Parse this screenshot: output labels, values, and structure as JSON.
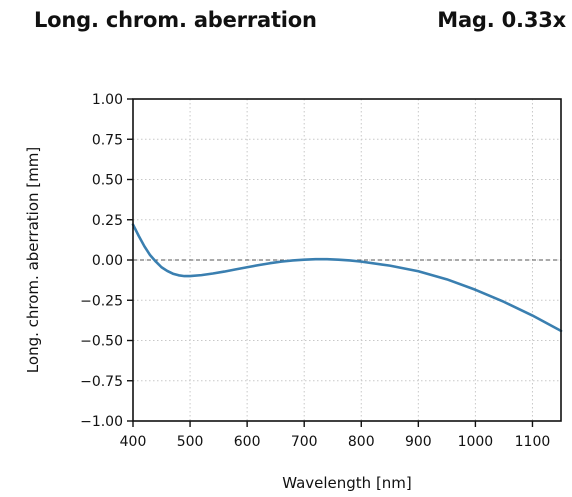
{
  "header": {
    "title": "Long. chrom. aberration",
    "magnification": "Mag. 0.33x"
  },
  "chart_data": {
    "type": "line",
    "title": "Long. chrom. aberration",
    "xlabel": "Wavelength [nm]",
    "ylabel": "Long. chrom. aberration [mm]",
    "xlim": [
      400,
      1150
    ],
    "ylim": [
      -1.0,
      1.0
    ],
    "xticks": [
      400,
      500,
      600,
      700,
      800,
      900,
      1000,
      1100
    ],
    "yticks": [
      1.0,
      0.75,
      0.5,
      0.25,
      0.0,
      -0.25,
      -0.5,
      -0.75,
      -1.0
    ],
    "xtick_labels": [
      "400",
      "500",
      "600",
      "700",
      "800",
      "900",
      "1000",
      "1100"
    ],
    "ytick_labels": [
      "1.00",
      "0.75",
      "0.50",
      "0.25",
      "0.00",
      "−0.25",
      "−0.50",
      "−0.75",
      "−1.00"
    ],
    "grid": true,
    "zero_line": true,
    "series": [
      {
        "color": "#3a7fb0",
        "x": [
          400,
          410,
          420,
          430,
          440,
          450,
          460,
          470,
          480,
          490,
          500,
          520,
          540,
          560,
          580,
          600,
          620,
          640,
          660,
          680,
          700,
          720,
          740,
          760,
          780,
          800,
          850,
          900,
          950,
          1000,
          1050,
          1100,
          1150
        ],
        "y": [
          0.22,
          0.15,
          0.085,
          0.03,
          -0.01,
          -0.045,
          -0.068,
          -0.085,
          -0.095,
          -0.1,
          -0.1,
          -0.094,
          -0.084,
          -0.072,
          -0.058,
          -0.045,
          -0.032,
          -0.02,
          -0.01,
          -0.003,
          0.002,
          0.005,
          0.005,
          0.002,
          -0.003,
          -0.01,
          -0.035,
          -0.07,
          -0.12,
          -0.185,
          -0.26,
          -0.345,
          -0.44
        ]
      }
    ]
  }
}
